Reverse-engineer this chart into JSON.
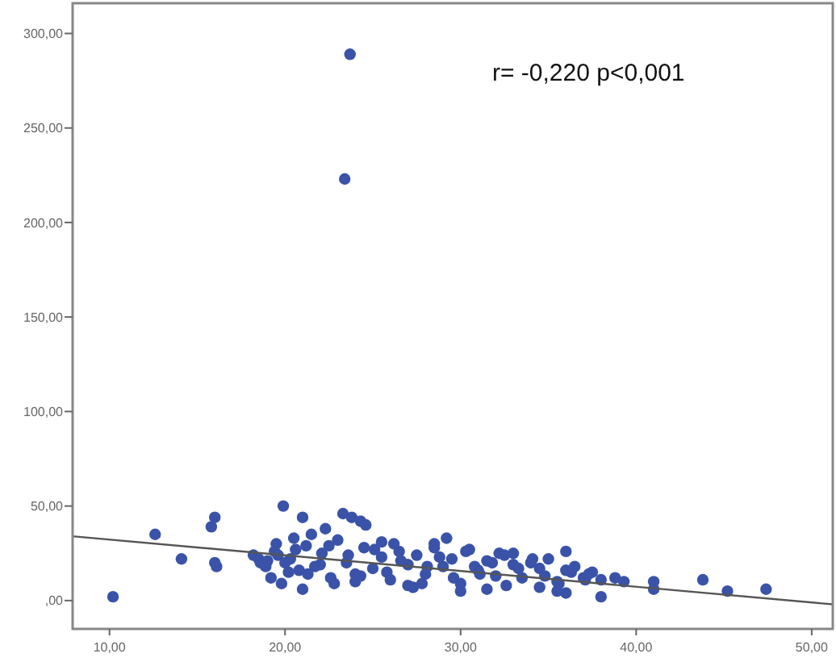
{
  "chart_data": {
    "type": "scatter",
    "annotations": [
      "r= -0,220 p<0,001"
    ],
    "xlim": [
      7.9,
      51.2
    ],
    "ylim": [
      -15,
      316
    ],
    "xticks": [
      {
        "value": 10,
        "label": "10,00"
      },
      {
        "value": 20,
        "label": "20,00"
      },
      {
        "value": 30,
        "label": "30,00"
      },
      {
        "value": 40,
        "label": "40,00"
      },
      {
        "value": 50,
        "label": "50,00"
      }
    ],
    "yticks": [
      {
        "value": 0,
        "label": ",00"
      },
      {
        "value": 50,
        "label": "50,00"
      },
      {
        "value": 100,
        "label": "100,00"
      },
      {
        "value": 150,
        "label": "150,00"
      },
      {
        "value": 200,
        "label": "200,00"
      },
      {
        "value": 250,
        "label": "250,00"
      },
      {
        "value": 300,
        "label": "300,00"
      }
    ],
    "grid": false,
    "marker": "circle",
    "series": [
      {
        "color": "#3a53a8",
        "x": [
          23.7,
          23.4,
          10.2,
          12.6,
          14.1,
          15.8,
          16.0,
          16.0,
          16.1,
          18.2,
          18.5,
          18.9,
          19.2,
          19.5,
          19.9,
          20.2,
          20.6,
          21.0,
          21.5,
          22.3,
          23.3,
          23.8,
          24.3,
          24.6,
          19.0,
          19.4,
          19.8,
          20.3,
          20.8,
          21.2,
          21.7,
          22.1,
          22.6,
          23.0,
          23.5,
          24.0,
          24.5,
          25.0,
          25.5,
          26.0,
          26.5,
          27.0,
          27.5,
          28.0,
          28.5,
          29.0,
          29.5,
          30.0,
          30.5,
          31.0,
          31.5,
          32.0,
          32.5,
          33.0,
          33.5,
          34.0,
          34.5,
          35.0,
          35.5,
          36.0,
          36.5,
          37.0,
          37.5,
          38.0,
          20.5,
          21.3,
          22.0,
          22.8,
          23.6,
          24.3,
          25.1,
          25.8,
          26.6,
          27.3,
          28.1,
          28.8,
          29.6,
          30.3,
          31.1,
          31.8,
          32.6,
          33.3,
          34.1,
          34.8,
          35.6,
          36.3,
          37.1,
          21.0,
          22.5,
          24.0,
          25.5,
          27.0,
          28.5,
          30.0,
          31.5,
          33.0,
          34.5,
          36.0,
          37.3,
          38.8,
          39.3,
          41.0,
          41.0,
          43.8,
          45.2,
          47.4,
          35.5,
          36.0,
          38.0,
          18.6,
          19.6,
          20.0,
          26.2,
          27.8,
          29.2,
          30.8,
          32.2
        ],
        "values": [
          289,
          223,
          2,
          35,
          22,
          39,
          44,
          20,
          18,
          24,
          22,
          18,
          12,
          30,
          50,
          15,
          27,
          44,
          35,
          38,
          46,
          44,
          42,
          40,
          21,
          26,
          9,
          22,
          16,
          29,
          18,
          25,
          12,
          32,
          20,
          14,
          28,
          17,
          23,
          11,
          26,
          19,
          24,
          14,
          30,
          18,
          22,
          9,
          27,
          16,
          21,
          13,
          24,
          19,
          12,
          20,
          17,
          22,
          10,
          16,
          18,
          12,
          15,
          11,
          33,
          14,
          19,
          9,
          24,
          13,
          27,
          15,
          21,
          7,
          18,
          23,
          12,
          26,
          14,
          20,
          8,
          17,
          22,
          13,
          9,
          15,
          11,
          6,
          29,
          10,
          31,
          8,
          28,
          5,
          6,
          25,
          7,
          26,
          14,
          12,
          10,
          10,
          6,
          11,
          5,
          6,
          5,
          4,
          2,
          20,
          24,
          20,
          30,
          9,
          33,
          18,
          25
        ]
      },
      {
        "type": "line",
        "color": "#555555",
        "marker": "none",
        "x": [
          7.9,
          51.2
        ],
        "values": [
          34,
          -2
        ]
      }
    ]
  }
}
